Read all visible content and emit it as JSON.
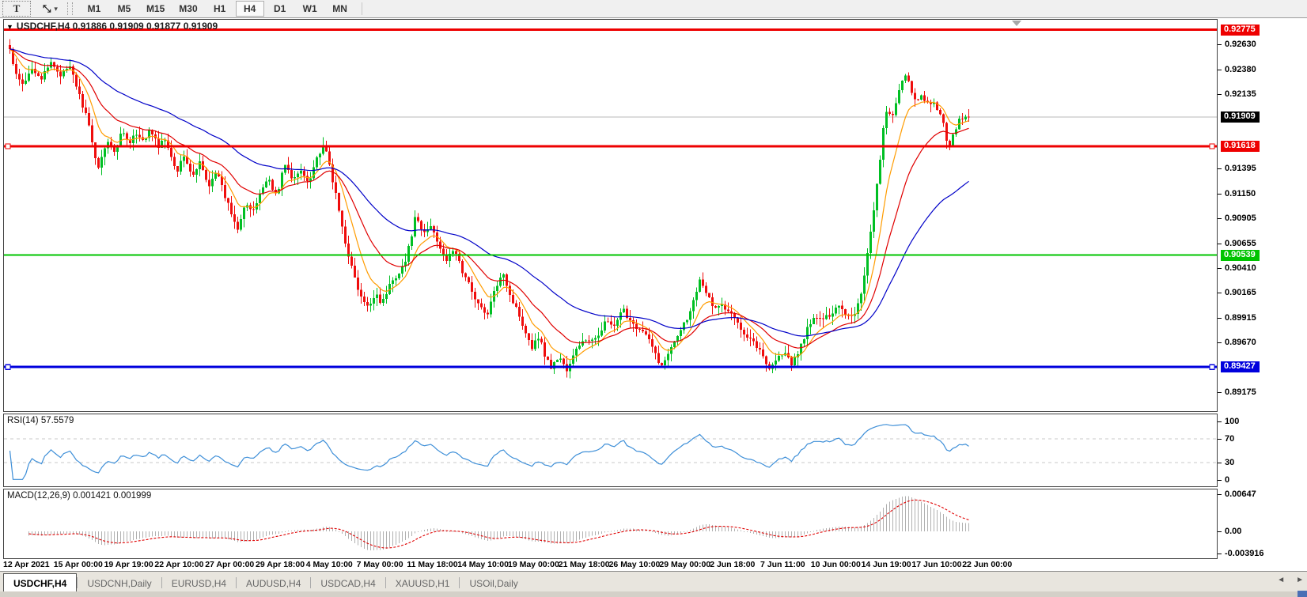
{
  "toolbar": {
    "text_tool_label": "T",
    "cursor_tool_glyph": "⤡",
    "dropdown_caret": "▾",
    "timeframes": [
      {
        "label": "M1",
        "active": false
      },
      {
        "label": "M5",
        "active": false
      },
      {
        "label": "M15",
        "active": false
      },
      {
        "label": "M30",
        "active": false
      },
      {
        "label": "H1",
        "active": false
      },
      {
        "label": "H4",
        "active": true
      },
      {
        "label": "D1",
        "active": false
      },
      {
        "label": "W1",
        "active": false
      },
      {
        "label": "MN",
        "active": false
      }
    ]
  },
  "chart": {
    "title": {
      "dropdown": "▼",
      "symbol": "USDCHF,H4",
      "ohlc": "0.91886 0.91909 0.91877 0.91909"
    },
    "rsi_label": "RSI(14) 57.5579",
    "macd_label": "MACD(12,26,9) 0.001421 0.001999",
    "price_ticks": [
      "0.92630",
      "0.92380",
      "0.92135",
      "0.91395",
      "0.91150",
      "0.90905",
      "0.90655",
      "0.90410",
      "0.90165",
      "0.89915",
      "0.89670",
      "0.89175"
    ],
    "price_badges": [
      {
        "text": "0.92775",
        "price": 0.92775,
        "bg": "#ee0000",
        "fg": "#ffffff"
      },
      {
        "text": "0.91909",
        "price": 0.91909,
        "bg": "#000000",
        "fg": "#ffffff"
      },
      {
        "text": "0.91618",
        "price": 0.91618,
        "bg": "#ee0000",
        "fg": "#ffffff"
      },
      {
        "text": "0.90539",
        "price": 0.90539,
        "bg": "#00c400",
        "fg": "#ffffff"
      },
      {
        "text": "0.89427",
        "price": 0.89427,
        "bg": "#0000dd",
        "fg": "#ffffff"
      }
    ],
    "rsi_ticks": [
      "100",
      "70",
      "30",
      "0"
    ],
    "macd_ticks": [
      "0.00647",
      "0.00",
      "-0.003916"
    ],
    "time_labels": [
      "12 Apr 2021",
      "15 Apr 00:00",
      "19 Apr 19:00",
      "22 Apr 10:00",
      "27 Apr 00:00",
      "29 Apr 18:00",
      "4 May 10:00",
      "7 May 00:00",
      "11 May 18:00",
      "14 May 10:00",
      "19 May 00:00",
      "21 May 18:00",
      "26 May 10:00",
      "29 May 00:00",
      "2 Jun 18:00",
      "7 Jun 11:00",
      "10 Jun 00:00",
      "14 Jun 19:00",
      "17 Jun 10:00",
      "22 Jun 00:00"
    ]
  },
  "chart_data": {
    "type": "candlestick",
    "symbol": "USDCHF",
    "timeframe": "H4",
    "title": "USDCHF,H4",
    "ohlc_current": {
      "open": 0.91886,
      "high": 0.91909,
      "low": 0.91877,
      "close": 0.91909
    },
    "current_price": 0.91909,
    "ylim": [
      0.88981,
      0.92885
    ],
    "horizontal_lines": [
      {
        "price": 0.92775,
        "color": "#ee0000",
        "width": 3
      },
      {
        "price": 0.91618,
        "color": "#ee0000",
        "width": 3
      },
      {
        "price": 0.90539,
        "color": "#00c400",
        "width": 2
      },
      {
        "price": 0.89427,
        "color": "#0000dd",
        "width": 3
      }
    ],
    "moving_averages": [
      {
        "name": "fast",
        "period": 9,
        "color": "#ff9c00"
      },
      {
        "name": "mid",
        "period": 22,
        "color": "#e00000"
      },
      {
        "name": "slow",
        "period": 55,
        "color": "#0000c8"
      }
    ],
    "indicators": [
      {
        "name": "RSI",
        "period": 14,
        "value": 57.5579,
        "levels": [
          30,
          70
        ],
        "range": [
          0,
          100
        ]
      },
      {
        "name": "MACD",
        "params": [
          12,
          26,
          9
        ],
        "values": [
          0.001421,
          0.001999
        ],
        "axis_labels": [
          0.00647,
          0.0,
          -0.003916
        ]
      }
    ],
    "price_path_anchors": [
      [
        8,
        0.9258
      ],
      [
        14,
        0.9233
      ],
      [
        25,
        0.9221
      ],
      [
        35,
        0.9241
      ],
      [
        48,
        0.9229
      ],
      [
        60,
        0.9245
      ],
      [
        72,
        0.9233
      ],
      [
        85,
        0.924
      ],
      [
        95,
        0.9213
      ],
      [
        105,
        0.919
      ],
      [
        112,
        0.9162
      ],
      [
        120,
        0.914
      ],
      [
        130,
        0.917
      ],
      [
        140,
        0.9154
      ],
      [
        150,
        0.9181
      ],
      [
        158,
        0.9162
      ],
      [
        165,
        0.9174
      ],
      [
        175,
        0.9166
      ],
      [
        185,
        0.9178
      ],
      [
        195,
        0.9162
      ],
      [
        205,
        0.917
      ],
      [
        212,
        0.915
      ],
      [
        220,
        0.9138
      ],
      [
        228,
        0.9154
      ],
      [
        238,
        0.913
      ],
      [
        248,
        0.9146
      ],
      [
        258,
        0.9122
      ],
      [
        268,
        0.9138
      ],
      [
        278,
        0.9115
      ],
      [
        288,
        0.9095
      ],
      [
        295,
        0.908
      ],
      [
        305,
        0.9107
      ],
      [
        315,
        0.9095
      ],
      [
        325,
        0.9119
      ],
      [
        335,
        0.913
      ],
      [
        345,
        0.9111
      ],
      [
        355,
        0.9146
      ],
      [
        365,
        0.9127
      ],
      [
        375,
        0.9138
      ],
      [
        385,
        0.9127
      ],
      [
        395,
        0.915
      ],
      [
        405,
        0.9162
      ],
      [
        412,
        0.9142
      ],
      [
        420,
        0.9111
      ],
      [
        430,
        0.9072
      ],
      [
        440,
        0.904
      ],
      [
        450,
        0.9013
      ],
      [
        460,
        0.9001
      ],
      [
        470,
        0.9017
      ],
      [
        478,
        0.9005
      ],
      [
        488,
        0.9025
      ],
      [
        498,
        0.9036
      ],
      [
        508,
        0.9048
      ],
      [
        520,
        0.9091
      ],
      [
        530,
        0.9075
      ],
      [
        540,
        0.9083
      ],
      [
        550,
        0.9064
      ],
      [
        560,
        0.9048
      ],
      [
        570,
        0.906
      ],
      [
        580,
        0.9036
      ],
      [
        590,
        0.9021
      ],
      [
        600,
        0.9005
      ],
      [
        610,
        0.8993
      ],
      [
        620,
        0.9017
      ],
      [
        630,
        0.904
      ],
      [
        640,
        0.9013
      ],
      [
        650,
        0.8997
      ],
      [
        660,
        0.8977
      ],
      [
        668,
        0.8962
      ],
      [
        676,
        0.8974
      ],
      [
        684,
        0.8954
      ],
      [
        692,
        0.8942
      ],
      [
        702,
        0.8954
      ],
      [
        712,
        0.8938
      ],
      [
        722,
        0.8958
      ],
      [
        732,
        0.897
      ],
      [
        742,
        0.8966
      ],
      [
        752,
        0.8977
      ],
      [
        762,
        0.8989
      ],
      [
        772,
        0.8981
      ],
      [
        782,
        0.9
      ],
      [
        792,
        0.8989
      ],
      [
        802,
        0.8981
      ],
      [
        812,
        0.8974
      ],
      [
        822,
        0.8958
      ],
      [
        832,
        0.8942
      ],
      [
        842,
        0.8962
      ],
      [
        852,
        0.8977
      ],
      [
        862,
        0.8989
      ],
      [
        872,
        0.9009
      ],
      [
        880,
        0.9033
      ],
      [
        888,
        0.9017
      ],
      [
        896,
        0.9001
      ],
      [
        906,
        0.9005
      ],
      [
        916,
        0.8997
      ],
      [
        926,
        0.8989
      ],
      [
        936,
        0.8977
      ],
      [
        946,
        0.897
      ],
      [
        956,
        0.8958
      ],
      [
        966,
        0.8942
      ],
      [
        976,
        0.895
      ],
      [
        986,
        0.8958
      ],
      [
        996,
        0.8944
      ],
      [
        1006,
        0.8962
      ],
      [
        1016,
        0.8981
      ],
      [
        1026,
        0.8993
      ],
      [
        1036,
        0.8989
      ],
      [
        1046,
        0.8997
      ],
      [
        1056,
        0.9005
      ],
      [
        1066,
        0.8993
      ],
      [
        1076,
        0.8997
      ],
      [
        1084,
        0.9017
      ],
      [
        1090,
        0.9048
      ],
      [
        1096,
        0.908
      ],
      [
        1102,
        0.9115
      ],
      [
        1108,
        0.915
      ],
      [
        1112,
        0.9182
      ],
      [
        1116,
        0.9201
      ],
      [
        1122,
        0.9186
      ],
      [
        1128,
        0.9205
      ],
      [
        1134,
        0.9225
      ],
      [
        1140,
        0.9235
      ],
      [
        1146,
        0.9217
      ],
      [
        1152,
        0.9205
      ],
      [
        1158,
        0.9213
      ],
      [
        1164,
        0.9207
      ],
      [
        1170,
        0.9201
      ],
      [
        1176,
        0.9205
      ],
      [
        1182,
        0.9197
      ],
      [
        1188,
        0.9181
      ],
      [
        1194,
        0.9162
      ],
      [
        1200,
        0.9174
      ],
      [
        1206,
        0.9186
      ],
      [
        1212,
        0.919
      ],
      [
        1218,
        0.91909
      ]
    ]
  },
  "colors": {
    "candle_up": "#00bf23",
    "candle_down": "#ef0d0d",
    "current_price_line": "#b8b8b8",
    "rsi_line": "#3e8fd8",
    "rsi_levels": "#c8c8c8",
    "macd_histogram": "#b0b0b0",
    "macd_signal": "#e00000"
  },
  "tabs": [
    {
      "label": "USDCHF,H4",
      "active": true
    },
    {
      "label": "USDCNH,Daily",
      "active": false
    },
    {
      "label": "EURUSD,H4",
      "active": false
    },
    {
      "label": "AUDUSD,H4",
      "active": false
    },
    {
      "label": "USDCAD,H4",
      "active": false
    },
    {
      "label": "XAUUSD,H1",
      "active": false
    },
    {
      "label": "USOil,Daily",
      "active": false
    }
  ],
  "tab_scroll": {
    "left": "◄",
    "right": "►"
  }
}
